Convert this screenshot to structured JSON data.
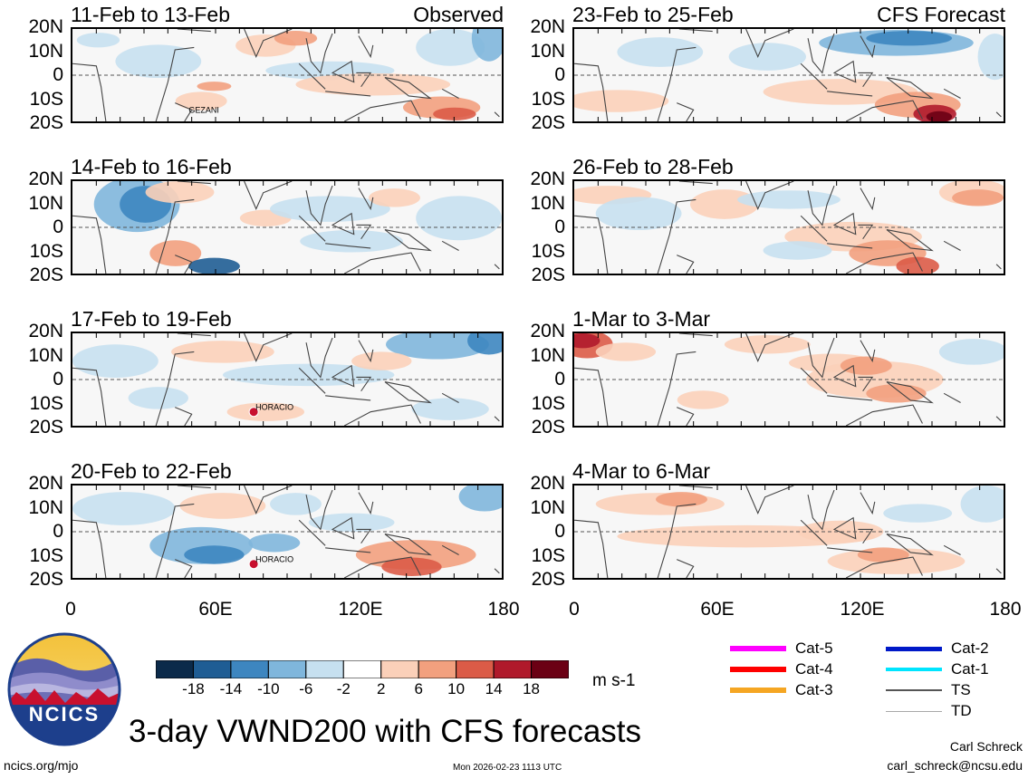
{
  "title": "3-day VWND200 with CFS forecasts",
  "units": "m s-1",
  "logo_text": "NCICS",
  "footer": {
    "url": "ncics.org/mjo",
    "timestamp": "Mon 2026-02-23 1113 UTC",
    "author": "Carl Schreck",
    "email": "carl_schreck@ncsu.edu"
  },
  "lat_labels": [
    "20N",
    "10N",
    "0",
    "10S",
    "20S"
  ],
  "lon_labels": [
    "0",
    "60E",
    "120E",
    "180"
  ],
  "colorbar": {
    "labels": [
      "-18",
      "-14",
      "-10",
      "-6",
      "-2",
      "2",
      "6",
      "10",
      "14",
      "18"
    ],
    "colors": [
      "#0b2a4a",
      "#1f5d94",
      "#3d86c0",
      "#7fb6dc",
      "#c6e0f0",
      "#ffffff",
      "#fbd0b9",
      "#f2a07e",
      "#db5b47",
      "#b0192b",
      "#6b0014"
    ]
  },
  "storm_legend": [
    {
      "label": "Cat-5",
      "color": "#ff00ff",
      "width": 6
    },
    {
      "label": "Cat-4",
      "color": "#ff0000",
      "width": 6
    },
    {
      "label": "Cat-3",
      "color": "#f5a623",
      "width": 6
    },
    {
      "label": "Cat-2",
      "color": "#0019c8",
      "width": 5
    },
    {
      "label": "Cat-1",
      "color": "#00e5ff",
      "width": 4
    },
    {
      "label": "TS",
      "color": "#555555",
      "width": 2
    },
    {
      "label": "TD",
      "color": "#a8a8a8",
      "width": 1
    }
  ],
  "chart_data": [
    {
      "type": "heatmap",
      "title": "11-Feb to 13-Feb",
      "tag": "Observed",
      "xlabel": "",
      "ylabel": "",
      "xlim": [
        0,
        180
      ],
      "ylim": [
        -20,
        20
      ],
      "storm_label": "GEZANI"
    },
    {
      "type": "heatmap",
      "title": "23-Feb to 25-Feb",
      "tag": "CFS Forecast",
      "xlabel": "",
      "ylabel": "",
      "xlim": [
        0,
        180
      ],
      "ylim": [
        -20,
        20
      ]
    },
    {
      "type": "heatmap",
      "title": "14-Feb to 16-Feb",
      "xlim": [
        0,
        180
      ],
      "ylim": [
        -20,
        20
      ]
    },
    {
      "type": "heatmap",
      "title": "26-Feb to 28-Feb",
      "xlim": [
        0,
        180
      ],
      "ylim": [
        -20,
        20
      ]
    },
    {
      "type": "heatmap",
      "title": "17-Feb to 19-Feb",
      "xlim": [
        0,
        180
      ],
      "ylim": [
        -20,
        20
      ],
      "storm_label": "HORACIO"
    },
    {
      "type": "heatmap",
      "title": "1-Mar to 3-Mar",
      "xlim": [
        0,
        180
      ],
      "ylim": [
        -20,
        20
      ]
    },
    {
      "type": "heatmap",
      "title": "20-Feb to 22-Feb",
      "xlim": [
        0,
        180
      ],
      "ylim": [
        -20,
        20
      ],
      "storm_label": "HORACIO"
    },
    {
      "type": "heatmap",
      "title": "4-Mar to 6-Mar",
      "xlim": [
        0,
        180
      ],
      "ylim": [
        -20,
        20
      ]
    }
  ]
}
